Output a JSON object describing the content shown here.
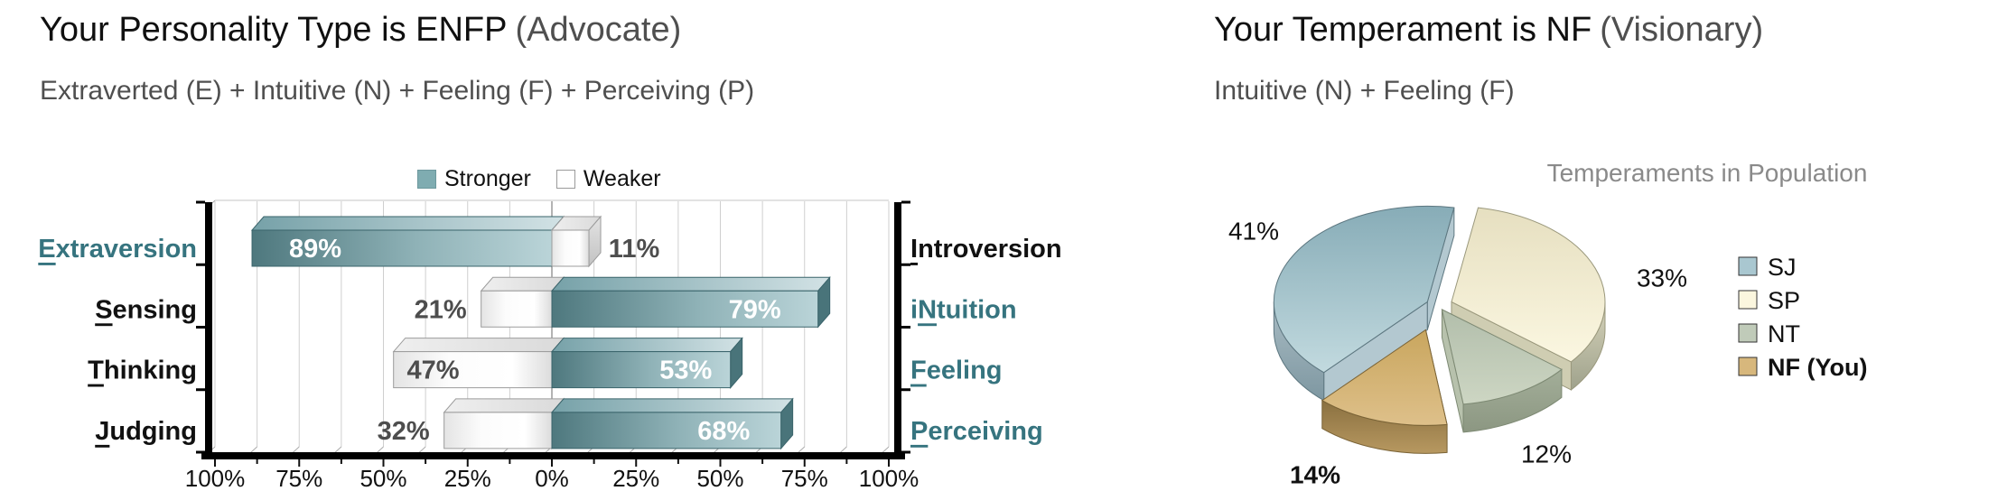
{
  "left_panel": {
    "title_main": "Your Personality Type is ENFP",
    "title_paren": "(Advocate)",
    "subtitle": "Extraverted (E) + Intuitive (N) + Feeling (F) + Perceiving (P)"
  },
  "right_panel": {
    "title_main": "Your Temperament is NF",
    "title_paren": "(Visionary)",
    "subtitle": "Intuitive (N) + Feeling (F)"
  },
  "chart_data": [
    {
      "type": "bar",
      "title": "",
      "orientation": "horizontal-diverging",
      "legend": {
        "stronger": "Stronger",
        "weaker": "Weaker"
      },
      "axis_tick_labels": [
        "100%",
        "75%",
        "50%",
        "25%",
        "0%",
        "25%",
        "50%",
        "75%",
        "100%"
      ],
      "axis_range_pct": [
        -100,
        100
      ],
      "grid": true,
      "rows": [
        {
          "left": {
            "label": "Extraversion",
            "underline_index": 0,
            "value": 89,
            "stronger": true,
            "teal_label": true
          },
          "right": {
            "label": "Introversion",
            "underline_index": 0,
            "value": 11,
            "stronger": false,
            "teal_label": false
          }
        },
        {
          "left": {
            "label": "Sensing",
            "underline_index": 0,
            "value": 21,
            "stronger": false,
            "teal_label": false
          },
          "right": {
            "label": "iNtuition",
            "underline_index": 1,
            "value": 79,
            "stronger": true,
            "teal_label": true
          }
        },
        {
          "left": {
            "label": "Thinking",
            "underline_index": 0,
            "value": 47,
            "stronger": false,
            "teal_label": false
          },
          "right": {
            "label": "Feeling",
            "underline_index": 0,
            "value": 53,
            "stronger": true,
            "teal_label": true
          }
        },
        {
          "left": {
            "label": "Judging",
            "underline_index": 0,
            "value": 32,
            "stronger": false,
            "teal_label": false
          },
          "right": {
            "label": "Perceiving",
            "underline_index": 0,
            "value": 68,
            "stronger": true,
            "teal_label": true
          }
        }
      ],
      "colors": {
        "stronger": "#7FACB1",
        "weaker": "#FFFFFF",
        "teal_text": "#36747F",
        "outside_label_text": "#4D4D4D"
      }
    },
    {
      "type": "pie",
      "title": "Temperaments in Population",
      "legend_position": "right",
      "slices": [
        {
          "label": "SJ",
          "value": 41,
          "color": "#A9C7D0",
          "highlight": false
        },
        {
          "label": "SP",
          "value": 33,
          "color": "#FBF6DE",
          "highlight": false
        },
        {
          "label": "NT",
          "value": 12,
          "color": "#C0CBB9",
          "highlight": false
        },
        {
          "label": "NF (You)",
          "value": 14,
          "color": "#D7B77C",
          "highlight": true
        }
      ]
    }
  ]
}
